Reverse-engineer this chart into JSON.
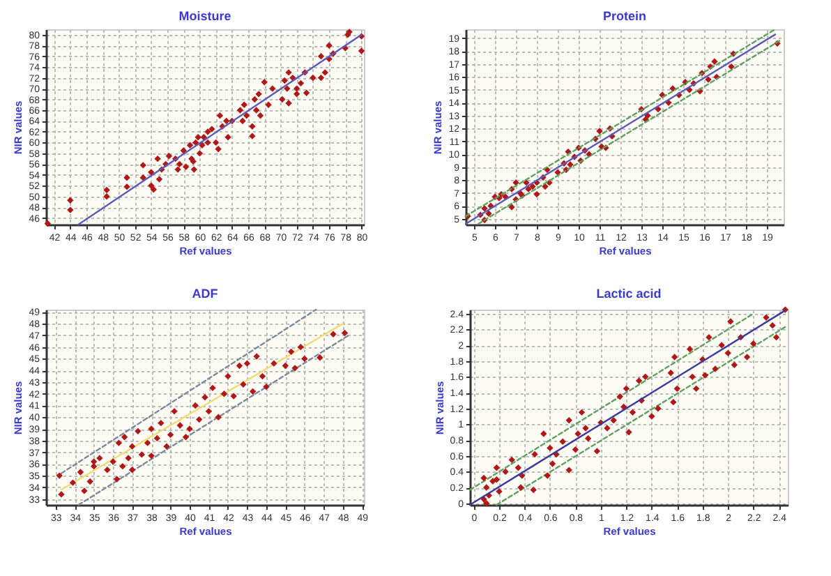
{
  "chart_data": [
    {
      "type": "scatter",
      "title": "Moisture",
      "xlabel": "Ref values",
      "ylabel": "NIR values",
      "xlim": [
        41,
        80.3
      ],
      "xticks": [
        42,
        44,
        46,
        48,
        50,
        52,
        54,
        56,
        58,
        60,
        62,
        64,
        66,
        68,
        70,
        72,
        74,
        76,
        78,
        80
      ],
      "ylim": [
        44.8,
        81
      ],
      "yticks": [
        46,
        48,
        50,
        52,
        54,
        56,
        58,
        60,
        62,
        64,
        66,
        68,
        70,
        72,
        74,
        76,
        78,
        80
      ],
      "grid": true,
      "series": [
        {
          "type": "scatter",
          "marker": "diamond",
          "color": "#b01818",
          "x": [
            41.2,
            44,
            44,
            48.5,
            48.5,
            51,
            51,
            53,
            53,
            54,
            54,
            54.3,
            54.8,
            55,
            55.3,
            55.8,
            56.2,
            57,
            57.3,
            57.5,
            58,
            58.3,
            58.8,
            59,
            59.2,
            59.3,
            59.5,
            59.8,
            60,
            60.3,
            60.5,
            61,
            61,
            61.5,
            62,
            62.3,
            62.5,
            62.8,
            63.3,
            63.5,
            64,
            65,
            65.3,
            65.5,
            65.8,
            66.5,
            66.5,
            66.8,
            67,
            67.3,
            67.5,
            68,
            68.5,
            69,
            70.2,
            70.5,
            70.8,
            71,
            71,
            71.5,
            72,
            72,
            72.5,
            73,
            73.2,
            74,
            75,
            75,
            75.5,
            76,
            76,
            76.5,
            78,
            78.3,
            78.5,
            80,
            80
          ],
          "values": [
            45,
            49.3,
            47.5,
            51.2,
            50,
            53.5,
            51.8,
            55.8,
            53.5,
            54.5,
            52,
            51.3,
            57,
            53.2,
            55,
            56,
            57.5,
            57,
            55,
            56,
            58.5,
            55.5,
            59.5,
            57,
            56.5,
            55,
            60,
            61,
            58,
            59.5,
            61,
            60,
            62,
            62.5,
            60,
            58.8,
            65,
            63,
            64,
            61,
            64,
            66,
            64,
            67,
            65,
            63,
            61.2,
            68,
            66,
            69,
            65,
            71.2,
            67,
            70,
            68,
            71.5,
            70,
            73,
            67.3,
            72,
            70,
            69,
            71,
            73,
            69.2,
            72,
            76,
            72,
            73,
            78,
            75.5,
            76.5,
            77.5,
            80,
            80.5,
            79.7,
            77
          ]
        },
        {
          "type": "line",
          "color": "#5a5ab8",
          "line_style": "solid",
          "x": [
            45,
            80
          ],
          "values": [
            44.8,
            80
          ]
        }
      ]
    },
    {
      "type": "scatter",
      "title": "Protein",
      "xlabel": "Ref values",
      "ylabel": "NIR values",
      "xlim": [
        4.6,
        19.8
      ],
      "xticks": [
        5,
        6,
        7,
        8,
        9,
        10,
        11,
        12,
        13,
        14,
        15,
        16,
        17,
        18,
        19
      ],
      "ylim": [
        4.55,
        19.7
      ],
      "yticks": [
        5,
        6,
        7,
        8,
        9,
        10,
        11,
        12,
        13,
        14,
        15,
        16,
        17,
        18,
        19
      ],
      "grid": true,
      "series": [
        {
          "type": "scatter",
          "marker": "diamond",
          "color": "#b01818",
          "x": [
            4.7,
            5.3,
            5.5,
            5.5,
            5.7,
            5.8,
            6,
            6.2,
            6.3,
            6.5,
            6.8,
            6.8,
            7,
            7,
            7.2,
            7.3,
            7.5,
            7.6,
            7.8,
            8,
            8,
            8.3,
            8.4,
            8.5,
            8.6,
            9,
            9.3,
            9.4,
            9.5,
            9.6,
            9.8,
            10,
            10.1,
            10.3,
            10.5,
            10.8,
            11,
            11.1,
            11.3,
            11.5,
            11.6,
            13,
            13.2,
            13.3,
            13.8,
            14,
            14.3,
            14.5,
            14.8,
            15.1,
            15.3,
            15.5,
            15.8,
            15.9,
            16.2,
            16.3,
            16.5,
            16.6,
            17.3,
            17.4,
            19.5
          ],
          "values": [
            5.2,
            5.3,
            5.8,
            4.9,
            5.4,
            6,
            6.7,
            6.6,
            6.9,
            6.7,
            5.9,
            7.3,
            6.5,
            7.8,
            7,
            6.8,
            7.8,
            7.3,
            7.5,
            7.8,
            6.9,
            8.2,
            7.5,
            8.8,
            7.8,
            8.6,
            9.3,
            8.8,
            10.2,
            9.2,
            9.8,
            10.5,
            9.5,
            10.3,
            10,
            11.2,
            11.8,
            10.6,
            10.5,
            12,
            11.4,
            13.5,
            12.7,
            13,
            13.5,
            14.6,
            14,
            15.1,
            14.6,
            15.6,
            15,
            15.5,
            14.9,
            16.3,
            15.8,
            16.8,
            17.2,
            16,
            16.8,
            17.8,
            18.6
          ]
        },
        {
          "type": "line",
          "color": "#5a5ab8",
          "line_style": "solid",
          "x": [
            4.6,
            19.4
          ],
          "values": [
            4.6,
            19.3
          ]
        },
        {
          "type": "line",
          "color": "#60a060",
          "line_style": "dashed",
          "x": [
            4.6,
            19.4
          ],
          "values": [
            5.2,
            19.7
          ]
        },
        {
          "type": "line",
          "color": "#60a060",
          "line_style": "dashed",
          "x": [
            5.2,
            19.6
          ],
          "values": [
            4.6,
            18.8
          ]
        }
      ]
    },
    {
      "type": "scatter",
      "title": "ADF",
      "xlabel": "Ref values",
      "ylabel": "NIR values",
      "xlim": [
        32.5,
        49.1
      ],
      "xticks": [
        33,
        34,
        35,
        36,
        37,
        38,
        39,
        40,
        41,
        42,
        43,
        44,
        45,
        46,
        47,
        48,
        49
      ],
      "ylim": [
        32.5,
        49.2
      ],
      "yticks": [
        33,
        34,
        35,
        36,
        37,
        38,
        39,
        40,
        41,
        42,
        43,
        44,
        45,
        46,
        47,
        48,
        49
      ],
      "grid": true,
      "series": [
        {
          "type": "line",
          "color": "#f0dc70",
          "line_style": "solid",
          "x": [
            33.3,
            48
          ],
          "values": [
            33.8,
            48
          ]
        },
        {
          "type": "line",
          "color": "#7a8a9a",
          "line_style": "dashed",
          "x": [
            33.3,
            46.6
          ],
          "values": [
            35.2,
            49.2
          ]
        },
        {
          "type": "line",
          "color": "#7a8a9a",
          "line_style": "dashed",
          "x": [
            34.2,
            48.3
          ],
          "values": [
            32.5,
            47
          ]
        },
        {
          "type": "scatter",
          "marker": "diamond",
          "color": "#b01818",
          "x": [
            33.2,
            33.3,
            33.9,
            34.3,
            34.5,
            34.8,
            35,
            35,
            35.3,
            35.7,
            36,
            36.2,
            36.3,
            36.5,
            36.6,
            36.8,
            37,
            37,
            37.3,
            37.5,
            37.8,
            38,
            38,
            38.3,
            38.5,
            38.8,
            39,
            39.2,
            39.5,
            39.8,
            40,
            40.3,
            40.5,
            40.8,
            41,
            41.2,
            41.5,
            41.8,
            42,
            42.3,
            42.6,
            42.8,
            43,
            43.3,
            43.5,
            43.8,
            44,
            44.4,
            45,
            45.3,
            45.5,
            45.8,
            46,
            46.8,
            47.5,
            48.1
          ],
          "values": [
            35,
            33.4,
            34.4,
            35.3,
            33.7,
            34.5,
            35.8,
            36.2,
            36.5,
            35.5,
            36.2,
            34.7,
            37.8,
            35.8,
            38.3,
            36.5,
            35.5,
            37.5,
            38.8,
            36.8,
            37.8,
            39,
            36.7,
            38.2,
            39.5,
            37.5,
            38.5,
            40.5,
            39.3,
            38.3,
            39,
            41,
            39.8,
            41.7,
            40.5,
            42.5,
            40,
            42,
            43.5,
            41.8,
            44.4,
            42.8,
            44.6,
            42.2,
            45.2,
            43.5,
            42.6,
            44.6,
            44.4,
            45.6,
            44.2,
            46,
            45,
            45.1,
            47.1,
            47.2
          ]
        }
      ]
    },
    {
      "type": "scatter",
      "title": "Lactic acid",
      "xlabel": "Ref values",
      "ylabel": "NIR values",
      "xlim": [
        -0.03,
        2.47
      ],
      "xticks": [
        0,
        0.2,
        0.4,
        0.6,
        0.8,
        1,
        1.2,
        1.4,
        1.6,
        1.8,
        2,
        2.2,
        2.4
      ],
      "ylim": [
        -0.02,
        2.45
      ],
      "yticks": [
        0,
        0.2,
        0.4,
        0.6,
        0.8,
        1,
        1.2,
        1.4,
        1.6,
        1.8,
        2,
        2.2,
        2.4
      ],
      "grid": true,
      "series": [
        {
          "type": "line",
          "color": "#60a060",
          "line_style": "dashed",
          "x": [
            -0.03,
            2.2
          ],
          "values": [
            0.17,
            2.4
          ]
        },
        {
          "type": "line",
          "color": "#60a060",
          "line_style": "dashed",
          "x": [
            0.18,
            2.45
          ],
          "values": [
            -0.02,
            2.23
          ]
        },
        {
          "type": "scatter",
          "marker": "diamond",
          "color": "#b01818",
          "x": [
            0.08,
            0.08,
            0.1,
            0.1,
            0.12,
            0.15,
            0.18,
            0.18,
            0.2,
            0.25,
            0.3,
            0.35,
            0.37,
            0.38,
            0.47,
            0.48,
            0.55,
            0.58,
            0.6,
            0.62,
            0.65,
            0.7,
            0.75,
            0.75,
            0.8,
            0.82,
            0.85,
            0.88,
            0.9,
            0.97,
            1,
            1.05,
            1.1,
            1.15,
            1.18,
            1.2,
            1.22,
            1.25,
            1.3,
            1.32,
            1.35,
            1.4,
            1.45,
            1.55,
            1.57,
            1.58,
            1.6,
            1.7,
            1.72,
            1.75,
            1.8,
            1.82,
            1.85,
            1.9,
            1.95,
            2,
            2.02,
            2.05,
            2.1,
            2.15,
            2.2,
            2.3,
            2.35,
            2.38,
            2.45
          ],
          "values": [
            0.32,
            0.05,
            0.2,
            0,
            0.1,
            0.28,
            0.45,
            0.3,
            0.15,
            0.4,
            0.55,
            0.45,
            0.2,
            0.35,
            0.17,
            0.62,
            0.88,
            0.35,
            0.7,
            0.5,
            0.62,
            0.78,
            0.42,
            1.05,
            0.68,
            0.88,
            1.15,
            0.95,
            0.82,
            0.66,
            1.02,
            0.95,
            1.05,
            1.35,
            1.22,
            1.45,
            0.9,
            1.15,
            1.55,
            1.3,
            1.6,
            1.1,
            1.2,
            1.65,
            1.28,
            1.85,
            1.45,
            1.95,
            1.6,
            1.45,
            1.82,
            1.62,
            2.1,
            1.7,
            2,
            1.9,
            2.3,
            1.75,
            2.1,
            1.85,
            2.02,
            2.35,
            2.25,
            2.1,
            2.45
          ]
        },
        {
          "type": "line",
          "color": "#3a3aa0",
          "line_style": "solid",
          "x": [
            -0.03,
            2.45
          ],
          "values": [
            -0.02,
            2.44
          ]
        }
      ]
    }
  ]
}
